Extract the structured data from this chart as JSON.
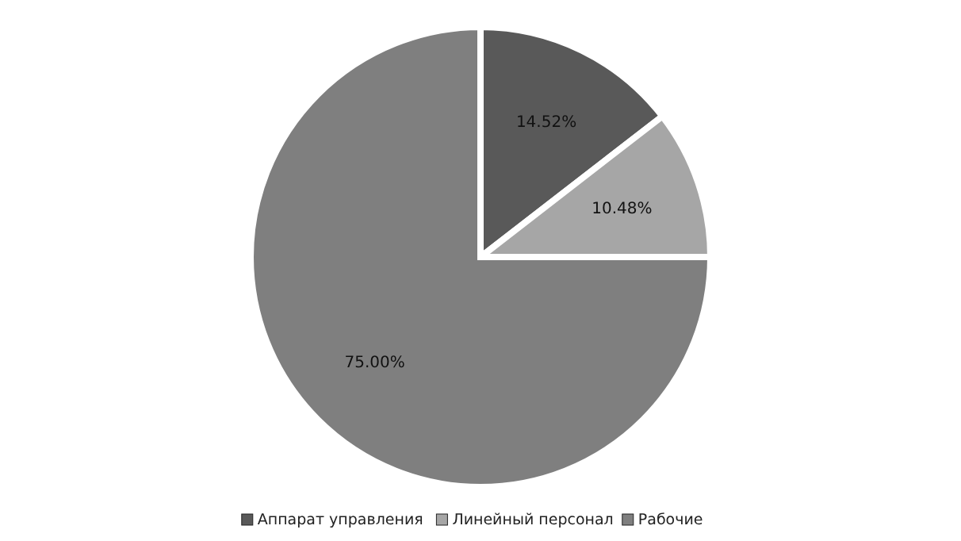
{
  "chart_data": {
    "type": "pie",
    "categories": [
      "Аппарат управления",
      "Линейный персонал",
      "Рабочие"
    ],
    "values": [
      14.52,
      10.48,
      75.0
    ],
    "colors": [
      "#595959",
      "#a6a6a6",
      "#7f7f7f"
    ],
    "value_labels": [
      "14.52%",
      "10.48%",
      "75.00%"
    ],
    "legend": "bottom"
  }
}
